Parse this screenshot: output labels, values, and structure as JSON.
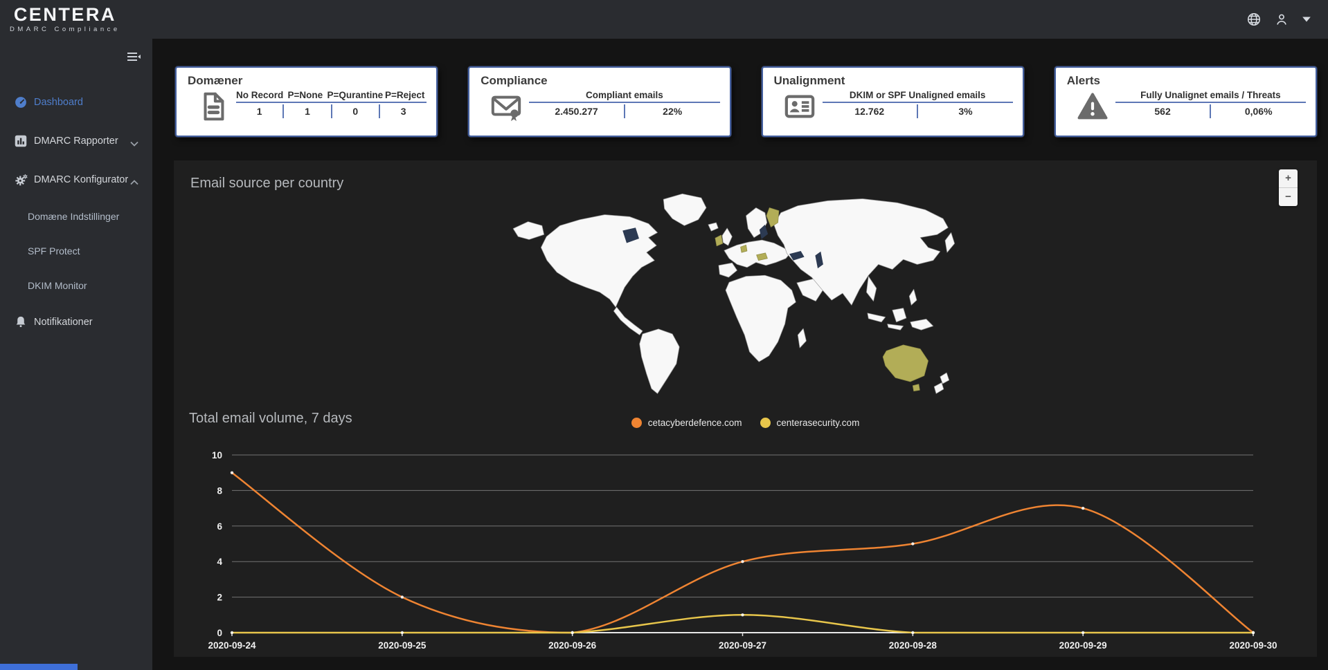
{
  "topbar": {
    "logo_title": "CENTERA",
    "logo_subtitle": "DMARC Compliance"
  },
  "sidebar": {
    "items": [
      {
        "label": "Dashboard",
        "active": true
      },
      {
        "label": "DMARC Rapporter",
        "chevron": "down"
      },
      {
        "label": "DMARC Konfigurator",
        "chevron": "up"
      },
      {
        "label": "Domæne Indstillinger",
        "sub": true
      },
      {
        "label": "SPF Protect",
        "sub": true
      },
      {
        "label": "DKIM Monitor",
        "sub": true
      },
      {
        "label": "Notifikationer"
      }
    ]
  },
  "cards": [
    {
      "title": "Domæner",
      "icon": "document-icon",
      "columns": [
        "No Record",
        "P=None",
        "P=Qurantine",
        "P=Reject"
      ],
      "values": [
        "1",
        "1",
        "0",
        "3"
      ]
    },
    {
      "title": "Compliance",
      "icon": "envelope-seal-icon",
      "header": "Compliant emails",
      "values": [
        "2.450.277",
        "22%"
      ]
    },
    {
      "title": "Unalignment",
      "icon": "id-card-icon",
      "header": "DKIM or SPF Unaligned emails",
      "values": [
        "12.762",
        "3%"
      ]
    },
    {
      "title": "Alerts",
      "icon": "warning-triangle-icon",
      "header": "Fully Unalignet emails / Threats",
      "values": [
        "562",
        "0,06%"
      ]
    }
  ],
  "map": {
    "title": "Email source per country",
    "zoom_in_label": "+",
    "zoom_out_label": "−",
    "land_color": "#f8f8f8",
    "border_color": "#9c9c9c",
    "highlight_color": "#b2ad57",
    "water_patch_color": "#2c3a52",
    "highlighted_countries": [
      "Ireland",
      "Netherlands",
      "Austria",
      "Finland",
      "Australia"
    ]
  },
  "chart_data": {
    "type": "line",
    "title": "Total email volume, 7 days",
    "x": [
      "2020-09-24",
      "2020-09-25",
      "2020-09-26",
      "2020-09-27",
      "2020-09-28",
      "2020-09-29",
      "2020-09-30"
    ],
    "series": [
      {
        "name": "cetacyberdefence.com",
        "color": "#ef8432",
        "values": [
          9,
          2,
          0,
          4,
          5,
          7,
          0
        ]
      },
      {
        "name": "centerasecurity.com",
        "color": "#e8c64b",
        "values": [
          0,
          0,
          0,
          1,
          0,
          0,
          0
        ]
      }
    ],
    "ylim": [
      0,
      10
    ],
    "yticks": [
      0,
      2,
      4,
      6,
      8,
      10
    ],
    "grid": true,
    "grid_color": "#b8b8b8",
    "axis_color": "#e8e8e8",
    "legend_position": "top-center",
    "smoothing": true
  }
}
